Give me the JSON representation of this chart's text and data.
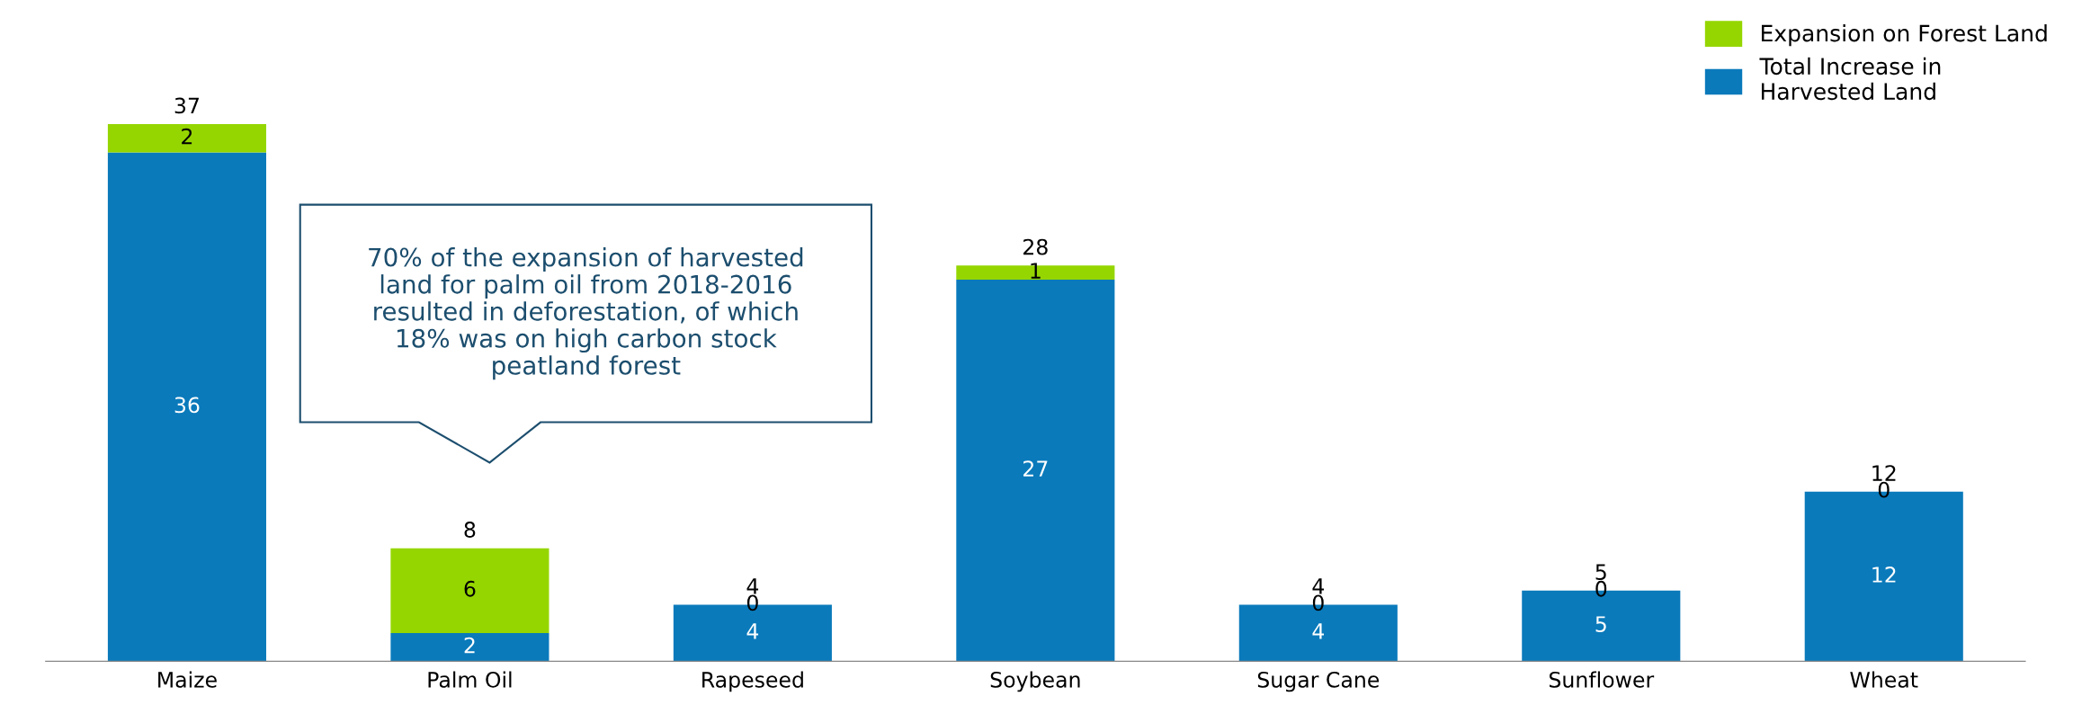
{
  "chart_data": {
    "type": "bar",
    "stacked": true,
    "data_labels": true,
    "legend": "top right",
    "categories": [
      "Maize",
      "Palm Oil",
      "Rapeseed",
      "Soybean",
      "Sugar Cane",
      "Sunflower",
      "Wheat"
    ],
    "series": [
      {
        "name": "Total Increase in Harvested Land",
        "color": "#0a7abb",
        "values": [
          36,
          2,
          4,
          27,
          4,
          5,
          12
        ]
      },
      {
        "name": "Expansion on Forest Land",
        "color": "#95d600",
        "values": [
          2,
          6,
          0,
          1,
          0,
          0,
          0
        ]
      }
    ],
    "totals": [
      "37",
      "8",
      "4",
      "28",
      "4",
      "5",
      "12"
    ],
    "annotations": [
      "70% of the expansion of harvested\nland for palm oil from 2018-2016\nresulted in deforestation, of which\n18% was on high carbon stock\npeatland forest"
    ]
  }
}
